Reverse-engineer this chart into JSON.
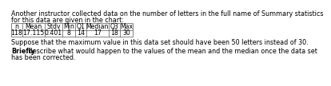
{
  "title_line1": "Another instructor collected data on the number of letters in the full name of Summary statistics",
  "title_line2": "for this data are given in the chart:",
  "headers": [
    "n",
    "Mean",
    "Stdv",
    "Min",
    "Q1",
    "Median",
    "Q3",
    "Max"
  ],
  "values": [
    "118",
    "17.115",
    "0.401",
    "8",
    "14",
    "17",
    "18",
    "30"
  ],
  "note1": "Suppose that the maximum value in this data set should have been 50 letters instead of 30.",
  "note2_bold": "Briefly",
  "note2_rest": " describe what would happen to the values of the mean and the median once the data set",
  "note3": "has been corrected.",
  "bg_color": "#ffffff",
  "text_color": "#000000",
  "font_size": 5.8,
  "table_font_size": 5.6
}
